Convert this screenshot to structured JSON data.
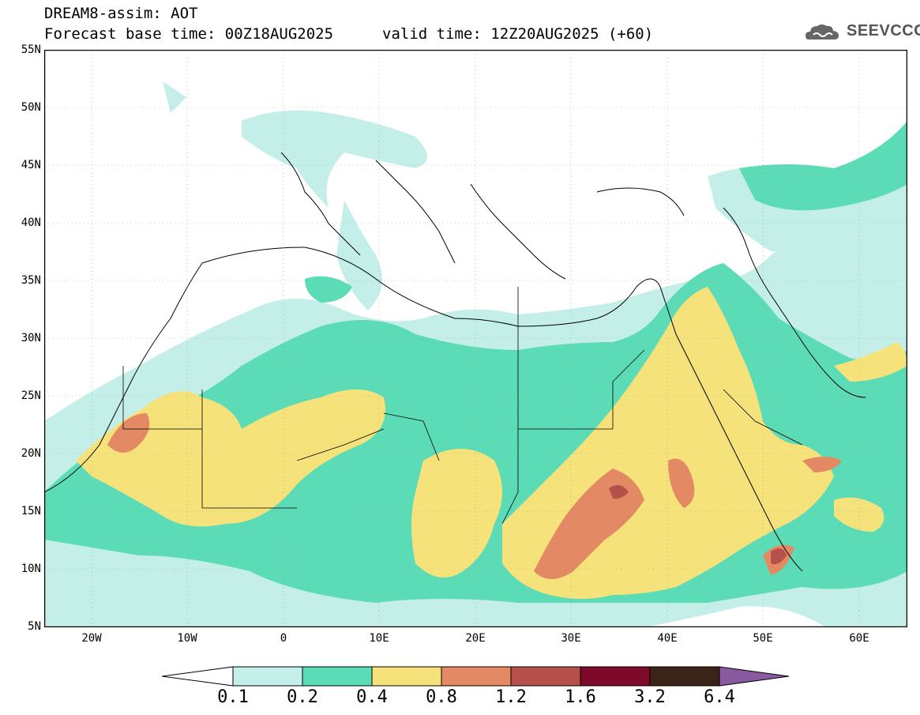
{
  "header": {
    "title": "DREAM8-assim: AOT",
    "forecast": "Forecast base time: 00Z18AUG2025",
    "valid": "valid time: 12Z20AUG2025 (+60)"
  },
  "logo": {
    "text": "SEEVCCC",
    "icon": "cloud-icon"
  },
  "map": {
    "lat_labels": [
      "55N",
      "50N",
      "45N",
      "40N",
      "35N",
      "30N",
      "25N",
      "20N",
      "15N",
      "10N",
      "5N"
    ],
    "lon_labels": [
      "20W",
      "10W",
      "0",
      "10E",
      "20E",
      "30E",
      "40E",
      "50E",
      "60E"
    ],
    "lat_range": [
      5,
      55
    ],
    "lon_range": [
      -25,
      65
    ]
  },
  "colorbar": {
    "labels": [
      "0.1",
      "0.2",
      "0.4",
      "0.8",
      "1.2",
      "1.6",
      "3.2",
      "6.4"
    ],
    "colors": [
      "#ffffff",
      "#c4efe9",
      "#5cdcb6",
      "#f6e27a",
      "#e38a64",
      "#b5504a",
      "#7d0a2a",
      "#3a2418",
      "#8a5aa0"
    ]
  },
  "aot_colors": {
    "c01": "#c4efe9",
    "c02": "#5cdcb6",
    "c04": "#f6e27a",
    "c08": "#e38a64",
    "c12": "#b5504a",
    "c16": "#7d0a2a",
    "c32": "#3a2418"
  }
}
